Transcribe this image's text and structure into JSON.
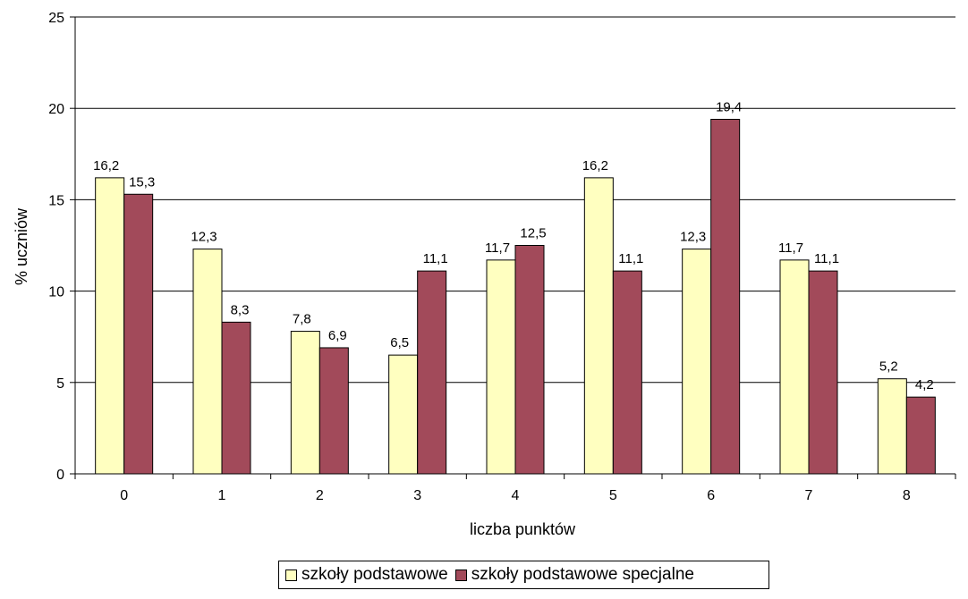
{
  "chart_data": {
    "type": "bar",
    "categories": [
      "0",
      "1",
      "2",
      "3",
      "4",
      "5",
      "6",
      "7",
      "8"
    ],
    "series": [
      {
        "name": "szkoły podstawowe",
        "color": "#FFFFC0",
        "values": [
          16.2,
          12.3,
          7.8,
          6.5,
          11.7,
          16.2,
          12.3,
          11.7,
          5.2
        ],
        "labels": [
          "16,2",
          "12,3",
          "7,8",
          "6,5",
          "11,7",
          "16,2",
          "12,3",
          "11,7",
          "5,2"
        ]
      },
      {
        "name": "szkoły podstawowe specjalne",
        "color": "#A24A5A",
        "values": [
          15.3,
          8.3,
          6.9,
          11.1,
          12.5,
          11.1,
          19.4,
          11.1,
          4.2
        ],
        "labels": [
          "15,3",
          "8,3",
          "6,9",
          "11,1",
          "12,5",
          "11,1",
          "19,4",
          "11,1",
          "4,2"
        ]
      }
    ],
    "xlabel": "liczba punktów",
    "ylabel": "% uczniów",
    "ylim": [
      0,
      25
    ],
    "yticks": [
      "0",
      "5",
      "10",
      "15",
      "20",
      "25"
    ],
    "grid": true,
    "legend": "bottom"
  }
}
